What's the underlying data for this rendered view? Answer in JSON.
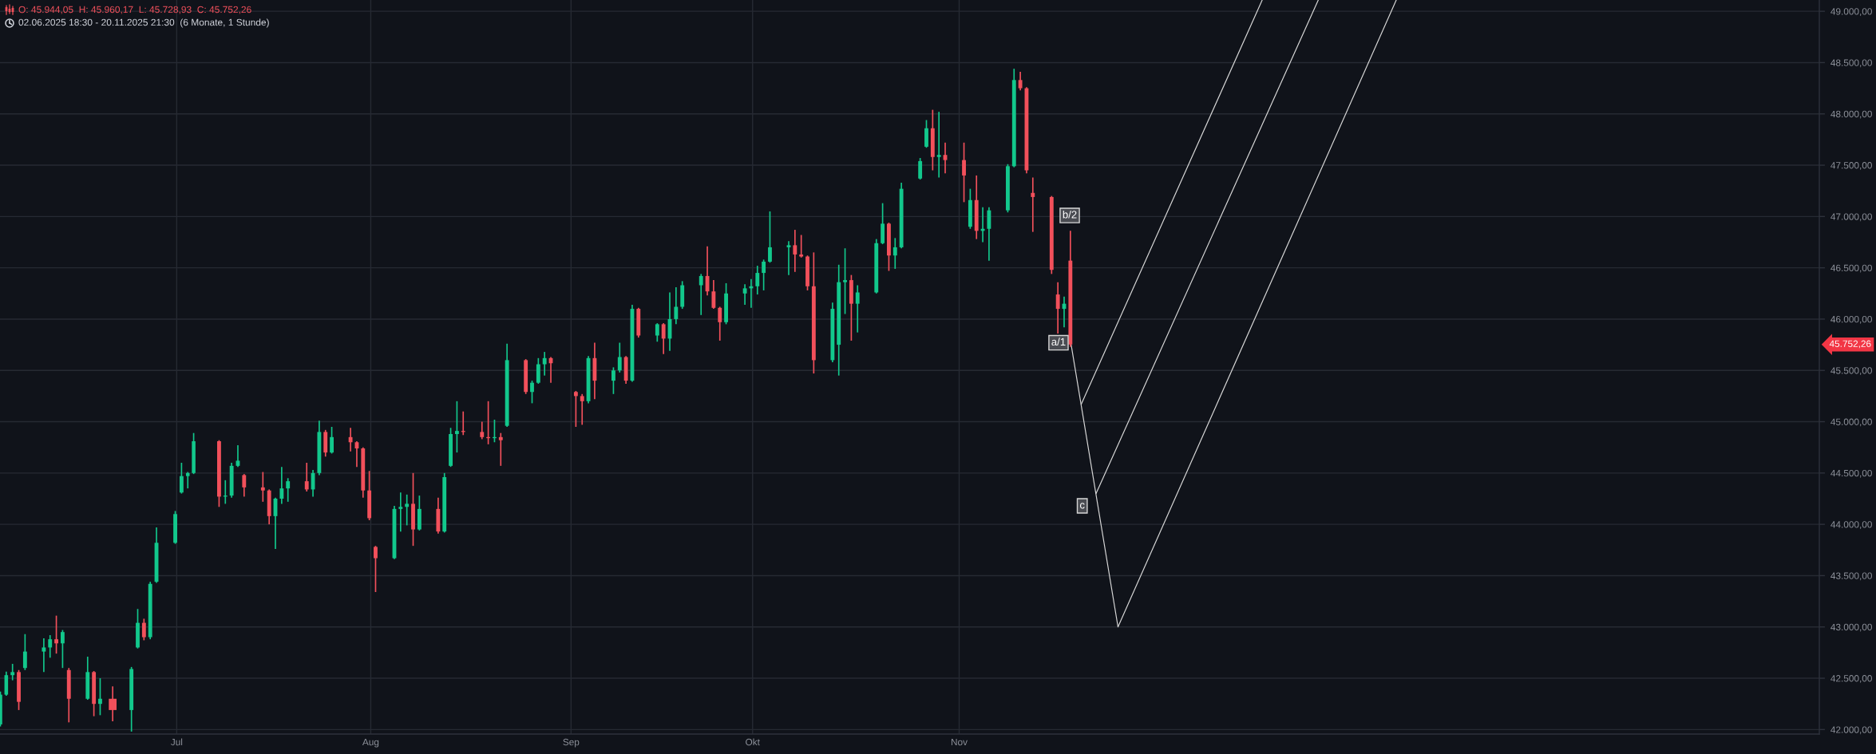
{
  "chart_data": {
    "type": "candlestick",
    "title": "O: 45.944,05  H: 45.960,17  L: 45.728,93  C: 45.752,26",
    "subtitle": "02.06.2025 18:30 - 20.11.2025 21:30  (6 Monate, 1 Stunde)",
    "x": [
      "2025-06-02T20:00",
      "2025-06-03T18:30",
      "2025-06-04T18:30",
      "2025-06-05T18:30",
      "2025-06-06T18:30",
      "2025-06-09T18:30",
      "2025-06-10T18:30",
      "2025-06-11T18:30",
      "2025-06-12T18:30",
      "2025-06-13T18:30",
      "2025-06-16T18:30",
      "2025-06-17T18:30",
      "2025-06-18T18:30",
      "2025-06-20T18:30",
      "2025-06-23T18:30",
      "2025-06-24T18:30",
      "2025-06-25T18:30",
      "2025-06-26T18:30",
      "2025-06-27T18:30",
      "2025-06-30T18:30",
      "2025-07-01T18:30",
      "2025-07-02T18:30",
      "2025-07-03T17:00",
      "2025-07-07T18:30",
      "2025-07-08T18:30",
      "2025-07-09T18:30",
      "2025-07-10T18:30",
      "2025-07-11T18:30",
      "2025-07-14T18:30",
      "2025-07-15T18:30",
      "2025-07-16T18:30",
      "2025-07-17T18:30",
      "2025-07-18T18:30",
      "2025-07-21T18:30",
      "2025-07-22T18:30",
      "2025-07-23T18:30",
      "2025-07-24T18:30",
      "2025-07-25T18:30",
      "2025-07-28T18:30",
      "2025-07-29T18:30",
      "2025-07-30T18:30",
      "2025-07-31T18:30",
      "2025-08-01T18:30",
      "2025-08-04T18:30",
      "2025-08-05T18:30",
      "2025-08-06T18:30",
      "2025-08-07T18:30",
      "2025-08-08T18:30",
      "2025-08-11T18:30",
      "2025-08-12T18:30",
      "2025-08-13T18:30",
      "2025-08-14T18:30",
      "2025-08-15T18:30",
      "2025-08-18T18:30",
      "2025-08-19T18:30",
      "2025-08-20T18:30",
      "2025-08-21T18:30",
      "2025-08-22T18:30",
      "2025-08-25T18:30",
      "2025-08-26T18:30",
      "2025-08-27T18:30",
      "2025-08-28T18:30",
      "2025-08-29T18:30",
      "2025-09-02T18:30",
      "2025-09-03T18:30",
      "2025-09-04T18:30",
      "2025-09-05T18:30",
      "2025-09-08T18:30",
      "2025-09-09T18:30",
      "2025-09-10T18:30",
      "2025-09-11T18:30",
      "2025-09-12T18:30",
      "2025-09-15T18:30",
      "2025-09-16T18:30",
      "2025-09-17T18:30",
      "2025-09-18T18:30",
      "2025-09-19T18:30",
      "2025-09-22T18:30",
      "2025-09-23T18:30",
      "2025-09-24T18:30",
      "2025-09-25T18:30",
      "2025-09-26T18:30",
      "2025-09-29T18:30",
      "2025-09-30T18:30",
      "2025-10-01T18:30",
      "2025-10-02T18:30",
      "2025-10-03T18:30",
      "2025-10-06T18:30",
      "2025-10-07T18:30",
      "2025-10-08T18:30",
      "2025-10-09T18:30",
      "2025-10-10T18:30",
      "2025-10-13T18:30",
      "2025-10-14T18:30",
      "2025-10-15T18:30",
      "2025-10-16T18:30",
      "2025-10-17T18:30",
      "2025-10-20T18:30",
      "2025-10-21T18:30",
      "2025-10-22T18:30",
      "2025-10-23T18:30",
      "2025-10-24T18:30",
      "2025-10-27T18:30",
      "2025-10-28T18:30",
      "2025-10-29T18:30",
      "2025-10-30T18:30",
      "2025-10-31T18:30",
      "2025-11-03T18:30",
      "2025-11-04T18:30",
      "2025-11-05T18:30",
      "2025-11-06T18:30",
      "2025-11-07T18:30",
      "2025-11-10T18:30",
      "2025-11-11T18:30",
      "2025-11-12T18:30",
      "2025-11-13T18:30",
      "2025-11-14T18:30",
      "2025-11-17T18:30",
      "2025-11-18T18:30",
      "2025-11-19T18:30",
      "2025-11-20T18:30"
    ],
    "ohlc": [
      [
        42050,
        42370,
        42030,
        42340
      ],
      [
        42340,
        42565,
        42330,
        42530
      ],
      [
        42530,
        42640,
        42480,
        42560
      ],
      [
        42560,
        42580,
        42190,
        42270
      ],
      [
        42600,
        42930,
        42580,
        42760
      ],
      [
        42760,
        42890,
        42560,
        42800
      ],
      [
        42800,
        42920,
        42700,
        42880
      ],
      [
        42880,
        43110,
        42740,
        42840
      ],
      [
        42840,
        42970,
        42600,
        42950
      ],
      [
        42580,
        42600,
        42070,
        42300
      ],
      [
        42300,
        42710,
        42290,
        42560
      ],
      [
        42560,
        42570,
        42130,
        42250
      ],
      [
        42250,
        42500,
        42140,
        42300
      ],
      [
        42300,
        42420,
        42080,
        42190
      ],
      [
        42190,
        42610,
        41980,
        42590
      ],
      [
        42800,
        43175,
        42790,
        43040
      ],
      [
        43040,
        43080,
        42870,
        42900
      ],
      [
        42900,
        43440,
        42880,
        43420
      ],
      [
        43440,
        43970,
        43430,
        43820
      ],
      [
        43820,
        44130,
        43810,
        44100
      ],
      [
        44310,
        44600,
        44300,
        44470
      ],
      [
        44470,
        44510,
        44350,
        44500
      ],
      [
        44500,
        44890,
        44490,
        44810
      ],
      [
        44810,
        44820,
        44170,
        44270
      ],
      [
        44270,
        44430,
        44200,
        44280
      ],
      [
        44280,
        44600,
        44260,
        44570
      ],
      [
        44570,
        44770,
        44560,
        44620
      ],
      [
        44480,
        44490,
        44270,
        44360
      ],
      [
        44360,
        44510,
        44220,
        44330
      ],
      [
        44330,
        44340,
        44000,
        44080
      ],
      [
        44080,
        44260,
        43760,
        44250
      ],
      [
        44250,
        44560,
        44200,
        44350
      ],
      [
        44350,
        44450,
        44220,
        44420
      ],
      [
        44420,
        44600,
        44320,
        44340
      ],
      [
        44340,
        44530,
        44270,
        44500
      ],
      [
        44500,
        45010,
        44480,
        44900
      ],
      [
        44900,
        44920,
        44660,
        44700
      ],
      [
        44700,
        44950,
        44690,
        44850
      ],
      [
        44850,
        44940,
        44710,
        44800
      ],
      [
        44800,
        44810,
        44560,
        44740
      ],
      [
        44740,
        44750,
        44260,
        44330
      ],
      [
        44330,
        44520,
        44040,
        44060
      ],
      [
        43780,
        43790,
        43340,
        43670
      ],
      [
        43670,
        44180,
        43660,
        44150
      ],
      [
        44150,
        44310,
        43930,
        44170
      ],
      [
        44170,
        44290,
        43990,
        44200
      ],
      [
        44200,
        44500,
        43790,
        43950
      ],
      [
        43950,
        44280,
        43940,
        44150
      ],
      [
        44150,
        44260,
        43910,
        43930
      ],
      [
        43930,
        44500,
        43920,
        44460
      ],
      [
        44570,
        44940,
        44560,
        44880
      ],
      [
        44880,
        45200,
        44700,
        44910
      ],
      [
        44910,
        45100,
        44870,
        44900
      ],
      [
        44900,
        45000,
        44830,
        44850
      ],
      [
        44850,
        45200,
        44780,
        44840
      ],
      [
        44840,
        45020,
        44800,
        44850
      ],
      [
        44850,
        44890,
        44570,
        44820
      ],
      [
        44960,
        45760,
        44950,
        45600
      ],
      [
        45600,
        45610,
        45270,
        45290
      ],
      [
        45290,
        45400,
        45180,
        45380
      ],
      [
        45380,
        45620,
        45370,
        45560
      ],
      [
        45560,
        45680,
        45450,
        45620
      ],
      [
        45620,
        45630,
        45380,
        45570
      ],
      [
        45290,
        45300,
        44950,
        45250
      ],
      [
        45250,
        45270,
        44970,
        45200
      ],
      [
        45200,
        45640,
        45180,
        45620
      ],
      [
        45620,
        45770,
        45220,
        45400
      ],
      [
        45400,
        45530,
        45270,
        45500
      ],
      [
        45500,
        45770,
        45480,
        45630
      ],
      [
        45630,
        45640,
        45370,
        45400
      ],
      [
        45400,
        46140,
        45390,
        46100
      ],
      [
        46100,
        46110,
        45820,
        45840
      ],
      [
        45840,
        45960,
        45780,
        45950
      ],
      [
        45950,
        45960,
        45660,
        45810
      ],
      [
        45810,
        46260,
        45690,
        46000
      ],
      [
        46000,
        46310,
        45950,
        46120
      ],
      [
        46120,
        46370,
        46100,
        46330
      ],
      [
        46330,
        46440,
        46040,
        46420
      ],
      [
        46420,
        46710,
        46230,
        46270
      ],
      [
        46270,
        46380,
        46100,
        46110
      ],
      [
        46110,
        46120,
        45790,
        45970
      ],
      [
        45970,
        46350,
        45950,
        46250
      ],
      [
        46250,
        46340,
        46140,
        46300
      ],
      [
        46300,
        46390,
        46110,
        46320
      ],
      [
        46320,
        46520,
        46240,
        46450
      ],
      [
        46450,
        46580,
        46280,
        46560
      ],
      [
        46560,
        47050,
        46550,
        46700
      ],
      [
        46700,
        46760,
        46430,
        46720
      ],
      [
        46720,
        46870,
        46460,
        46630
      ],
      [
        46630,
        46820,
        46600,
        46610
      ],
      [
        46610,
        46620,
        46280,
        46320
      ],
      [
        46320,
        46650,
        45470,
        45600
      ],
      [
        45600,
        46160,
        45580,
        46100
      ],
      [
        45750,
        46530,
        45450,
        46360
      ],
      [
        46360,
        46690,
        46050,
        46380
      ],
      [
        46380,
        46430,
        45790,
        46150
      ],
      [
        46150,
        46330,
        45870,
        46260
      ],
      [
        46260,
        46780,
        46250,
        46740
      ],
      [
        46740,
        47130,
        46730,
        46930
      ],
      [
        46930,
        46940,
        46470,
        46620
      ],
      [
        46620,
        46790,
        46490,
        46700
      ],
      [
        46700,
        47330,
        46690,
        47270
      ],
      [
        47370,
        47570,
        47360,
        47540
      ],
      [
        47680,
        47940,
        47670,
        47860
      ],
      [
        47860,
        48040,
        47450,
        47580
      ],
      [
        47580,
        48020,
        47380,
        47600
      ],
      [
        47600,
        47720,
        47420,
        47550
      ],
      [
        47550,
        47720,
        47140,
        47400
      ],
      [
        46900,
        47270,
        46880,
        47160
      ],
      [
        47160,
        47400,
        46780,
        46860
      ],
      [
        46860,
        47090,
        46750,
        46880
      ],
      [
        46880,
        47090,
        46570,
        47060
      ],
      [
        47060,
        47510,
        47040,
        47490
      ],
      [
        47490,
        48440,
        47480,
        48330
      ],
      [
        48330,
        48410,
        48230,
        48250
      ],
      [
        48250,
        48260,
        47420,
        47450
      ],
      [
        47230,
        47380,
        46850,
        47190
      ],
      [
        47190,
        47200,
        46440,
        46480
      ],
      [
        46240,
        46360,
        45860,
        46100
      ],
      [
        46100,
        46220,
        45920,
        46150
      ],
      [
        46570,
        46860,
        45730,
        45752.26
      ]
    ],
    "colors": [
      "#12c88c",
      "#12c88c",
      "#12c88c",
      "#f2505b",
      "#12c88c",
      "#12c88c",
      "#12c88c",
      "#f2505b",
      "#12c88c",
      "#f2505b",
      "#12c88c",
      "#f2505b",
      "#12c88c",
      "#f2505b",
      "#12c88c",
      "#12c88c",
      "#f2505b",
      "#12c88c",
      "#12c88c",
      "#12c88c",
      "#12c88c",
      "#12c88c",
      "#12c88c",
      "#f2505b",
      "#12c88c",
      "#12c88c",
      "#12c88c",
      "#f2505b",
      "#f2505b",
      "#f2505b",
      "#12c88c",
      "#12c88c",
      "#12c88c",
      "#f2505b",
      "#12c88c",
      "#12c88c",
      "#f2505b",
      "#12c88c",
      "#f2505b",
      "#f2505b",
      "#f2505b",
      "#f2505b",
      "#f2505b",
      "#12c88c",
      "#12c88c",
      "#12c88c",
      "#f2505b",
      "#12c88c",
      "#f2505b",
      "#12c88c",
      "#12c88c",
      "#12c88c",
      "#f2505b",
      "#f2505b",
      "#f2505b",
      "#12c88c",
      "#f2505b",
      "#12c88c",
      "#f2505b",
      "#12c88c",
      "#12c88c",
      "#12c88c",
      "#f2505b",
      "#f2505b",
      "#f2505b",
      "#12c88c",
      "#f2505b",
      "#12c88c",
      "#12c88c",
      "#f2505b",
      "#12c88c",
      "#f2505b",
      "#12c88c",
      "#f2505b",
      "#12c88c",
      "#12c88c",
      "#12c88c",
      "#12c88c",
      "#f2505b",
      "#f2505b",
      "#f2505b",
      "#12c88c",
      "#12c88c",
      "#12c88c",
      "#12c88c",
      "#12c88c",
      "#12c88c",
      "#12c88c",
      "#f2505b",
      "#f2505b",
      "#f2505b",
      "#f2505b",
      "#12c88c",
      "#12c88c",
      "#12c88c",
      "#f2505b",
      "#12c88c",
      "#12c88c",
      "#12c88c",
      "#f2505b",
      "#12c88c",
      "#12c88c",
      "#12c88c",
      "#12c88c",
      "#f2505b",
      "#12c88c",
      "#f2505b",
      "#f2505b",
      "#12c88c",
      "#f2505b",
      "#12c88c",
      "#12c88c",
      "#12c88c",
      "#12c88c",
      "#f2505b",
      "#f2505b",
      "#f2505b",
      "#f2505b",
      "#f2505b",
      "#12c88c",
      "#f2505b"
    ],
    "series": [
      {
        "type": "line",
        "color": "#d8d8d8",
        "x": [
          "2025-11-20T21:30",
          "2025-11-28T09:00",
          "2026-01-11T20:00"
        ],
        "values": [
          45750,
          43000,
          49110
        ]
      },
      {
        "type": "line",
        "color": "#d8d8d8",
        "x": [
          "2025-11-22T12:00",
          "2025-12-21T10:00"
        ],
        "values": [
          45170,
          49110
        ]
      },
      {
        "type": "line",
        "color": "#d8d8d8",
        "x": [
          "2025-11-24T21:00",
          "2025-12-30T09:00"
        ],
        "values": [
          44300,
          49110
        ]
      }
    ],
    "xlim": [
      "2025-06-02T18:30",
      "2026-03-20T10:00"
    ],
    "ylim": [
      41956,
      49110
    ],
    "xticks": [
      {
        "value": "2025-07-01",
        "label": "Jul"
      },
      {
        "value": "2025-08-01",
        "label": "Aug"
      },
      {
        "value": "2025-09-02",
        "label": "Sep"
      },
      {
        "value": "2025-10-01",
        "label": "Okt"
      },
      {
        "value": "2025-11-03",
        "label": "Nov"
      }
    ],
    "yticks": [
      {
        "value": 42000,
        "label": "42.000,00"
      },
      {
        "value": 42500,
        "label": "42.500,00"
      },
      {
        "value": 43000,
        "label": "43.000,00"
      },
      {
        "value": 43500,
        "label": "43.500,00"
      },
      {
        "value": 44000,
        "label": "44.000,00"
      },
      {
        "value": 44500,
        "label": "44.500,00"
      },
      {
        "value": 45000,
        "label": "45.000,00"
      },
      {
        "value": 45500,
        "label": "45.500,00"
      },
      {
        "value": 46000,
        "label": "46.000,00"
      },
      {
        "value": 46500,
        "label": "46.500,00"
      },
      {
        "value": 47000,
        "label": "47.000,00"
      },
      {
        "value": 47500,
        "label": "47.500,00"
      },
      {
        "value": 48000,
        "label": "48.000,00"
      },
      {
        "value": 48500,
        "label": "48.500,00"
      },
      {
        "value": 49000,
        "label": "49.000,00"
      }
    ],
    "grid": true,
    "annotations": [
      {
        "text": "b/2",
        "x": "2025-11-20T16:00",
        "y": 47010
      },
      {
        "text": "a/1",
        "x": "2025-11-18T21:00",
        "y": 45770
      },
      {
        "text": "c",
        "x": "2025-11-22T16:00",
        "y": 44180
      },
      "45.752,26"
    ]
  }
}
